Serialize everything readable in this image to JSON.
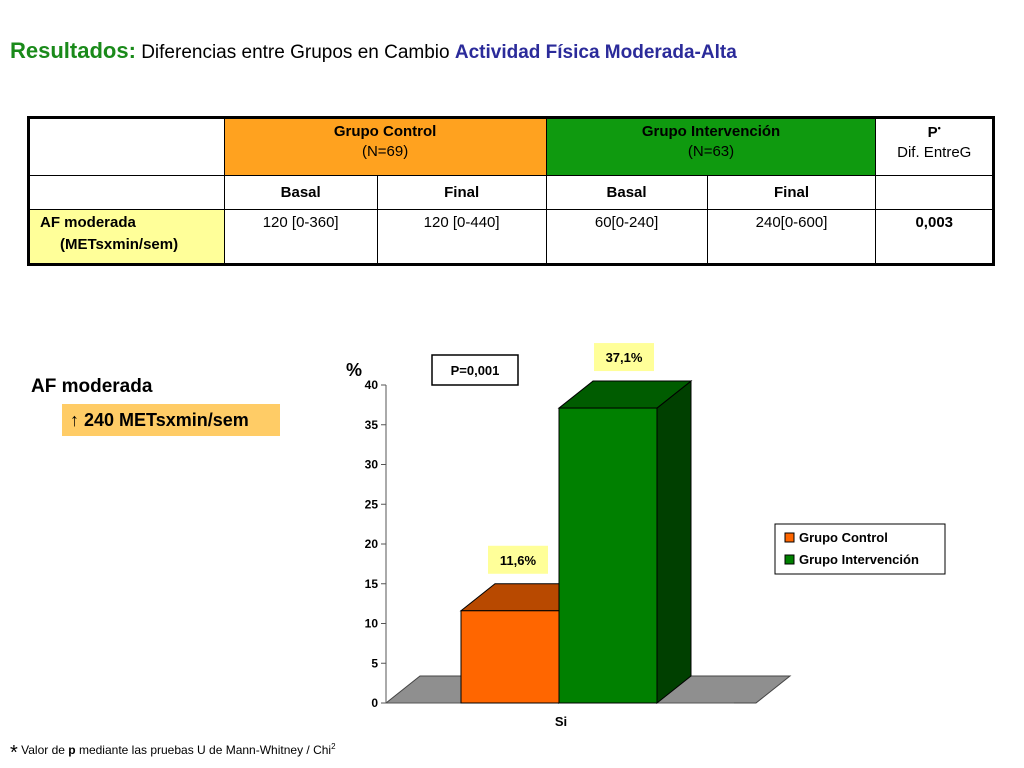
{
  "title": {
    "prefix": "Resultados:",
    "middle": "Diferencias entre Grupos en Cambio",
    "highlight": "Actividad Física Moderada-Alta"
  },
  "table": {
    "groups": [
      {
        "name": "Grupo Control",
        "n": "(N=69)"
      },
      {
        "name": "Grupo Intervención",
        "n": "(N=63)"
      }
    ],
    "p_header": {
      "label": "P",
      "mark": "•",
      "sub": "Dif. EntreG"
    },
    "subheaders": [
      "Basal",
      "Final",
      "Basal",
      "Final"
    ],
    "row": {
      "label1": "AF moderada",
      "label2": "(METsxmin/sem)",
      "values": [
        "120 [0-360]",
        "120 [0-440]",
        "60[0-240]",
        "240[0-600]"
      ],
      "p": "0,003"
    }
  },
  "side": {
    "title": "AF moderada",
    "box": "↑ 240 METsxmin/sem"
  },
  "chart_data": {
    "type": "bar",
    "categories": [
      "Si"
    ],
    "series": [
      {
        "name": "Grupo Control",
        "values": [
          11.6
        ],
        "label": "11,6%",
        "color": "#ff6600",
        "label_bg": "#ffff99"
      },
      {
        "name": "Grupo Intervención",
        "values": [
          37.1
        ],
        "label": "37,1%",
        "color": "#008000",
        "label_bg": "#ffff99"
      }
    ],
    "ylabel": "%",
    "ylim": [
      0,
      40
    ],
    "yticks": [
      0,
      5,
      10,
      15,
      20,
      25,
      30,
      35,
      40
    ],
    "annotation": "P=0,001",
    "legend_position": "right",
    "grid": false
  },
  "footnote": {
    "star": "*",
    "text1": " Valor de ",
    "p": "p",
    "text2": " mediante las pruebas U de Mann-Whitney / Chi",
    "sup": "2"
  }
}
